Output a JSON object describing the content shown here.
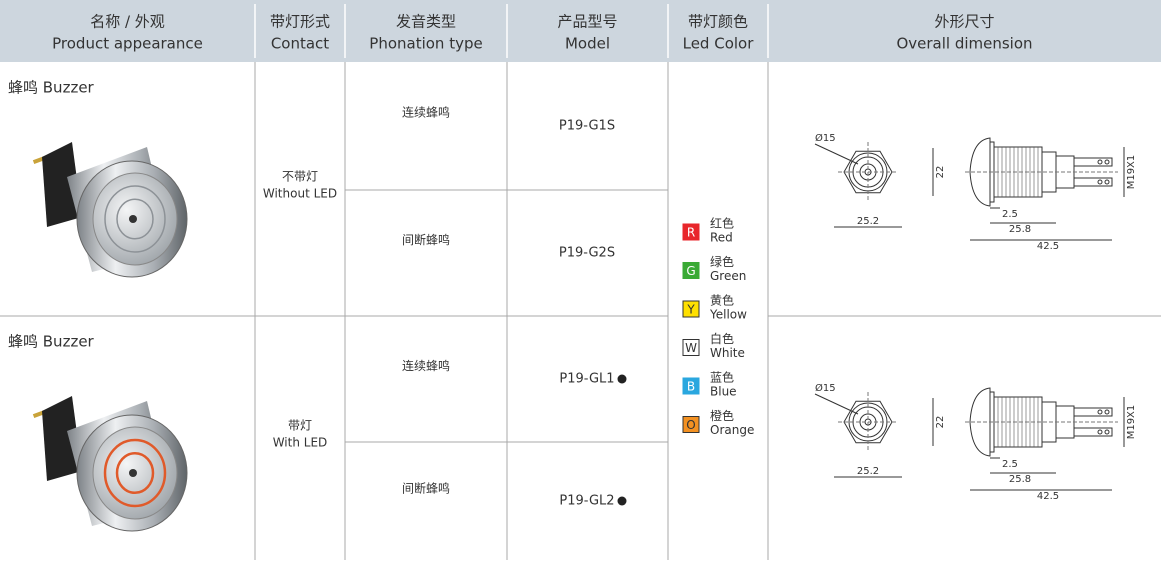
{
  "header": [
    {
      "cn": "名称 / 外观",
      "en": "Product appearance"
    },
    {
      "cn": "带灯形式",
      "en": "Contact"
    },
    {
      "cn": "发音类型",
      "en": "Phonation type"
    },
    {
      "cn": "产品型号",
      "en": "Model"
    },
    {
      "cn": "带灯颜色",
      "en": "Led Color"
    },
    {
      "cn": "外形尺寸",
      "en": "Overall dimension"
    }
  ],
  "rows": [
    {
      "name": "蜂鸣 Buzzer",
      "contact": {
        "cn": "不带灯",
        "en": "Without LED"
      },
      "variants": [
        {
          "phonation": "连续蜂鸣",
          "model": "P19-G1S"
        },
        {
          "phonation": "间断蜂鸣",
          "model": "P19-G2S"
        }
      ],
      "dimensions": {
        "diameter": "Ø15",
        "height": "22",
        "width": "25.2",
        "flange": "2.5",
        "body": "25.8",
        "length": "42.5",
        "thread": "M19X1"
      }
    },
    {
      "name": "蜂鸣 Buzzer",
      "contact": {
        "cn": "带灯",
        "en": "With LED"
      },
      "variants": [
        {
          "phonation": "连续蜂鸣",
          "model": "P19-GL1"
        },
        {
          "phonation": "间断蜂鸣",
          "model": "P19-GL2"
        }
      ],
      "dimensions": {
        "diameter": "Ø15",
        "height": "22",
        "width": "25.2",
        "flange": "2.5",
        "body": "25.8",
        "length": "42.5",
        "thread": "M19X1"
      }
    }
  ],
  "led_colors": [
    {
      "code": "R",
      "cn": "红色",
      "en": "Red",
      "color": "#e8262b"
    },
    {
      "code": "G",
      "cn": "绿色",
      "en": "Green",
      "color": "#3aaa35"
    },
    {
      "code": "Y",
      "cn": "黄色",
      "en": "Yellow",
      "color": "#ffe000"
    },
    {
      "code": "W",
      "cn": "白色",
      "en": "White",
      "color": "#ffffff"
    },
    {
      "code": "B",
      "cn": "蓝色",
      "en": "Blue",
      "color": "#2aa7df"
    },
    {
      "code": "O",
      "cn": "橙色",
      "en": "Orange",
      "color": "#f39122"
    }
  ]
}
